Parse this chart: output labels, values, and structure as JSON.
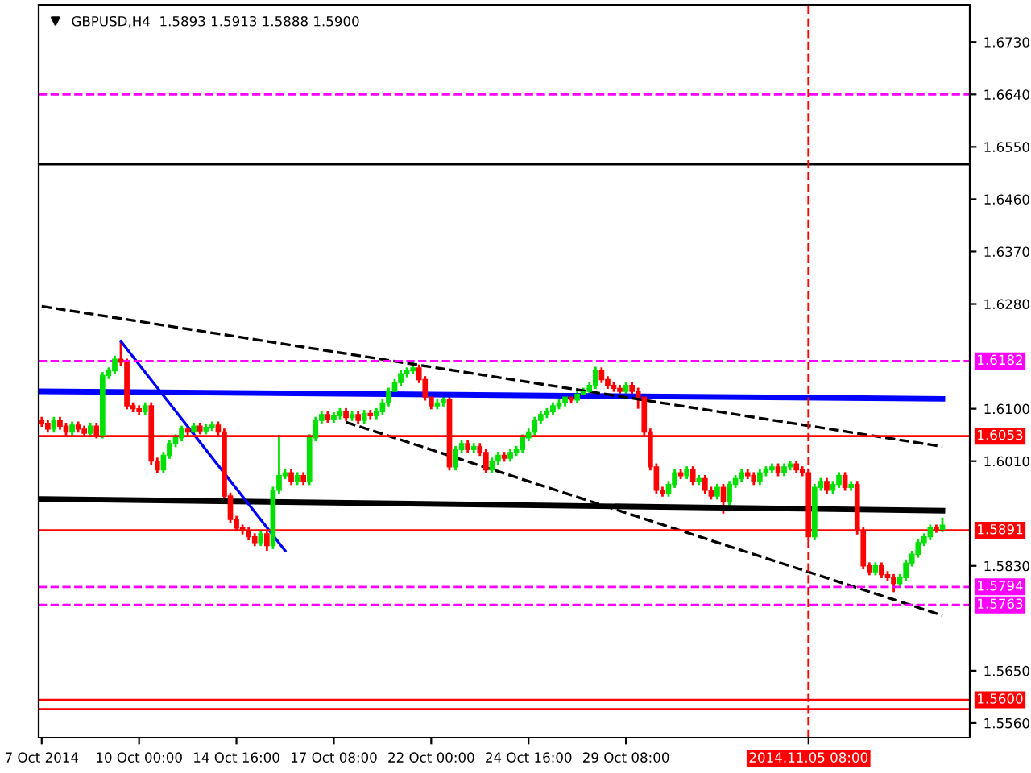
{
  "chart_data": {
    "type": "candlestick",
    "title": "GBPUSD,H4  1.5893 1.5913 1.5888 1.5900",
    "categories": [
      "7 Oct 2014",
      null,
      null,
      null,
      null,
      null,
      null,
      null,
      null,
      null,
      null,
      null,
      null,
      null,
      null,
      null,
      "10 Oct 00:00",
      null,
      null,
      null,
      null,
      null,
      null,
      null,
      null,
      null,
      null,
      null,
      null,
      null,
      null,
      null,
      "14 Oct 16:00",
      null,
      null,
      null,
      null,
      null,
      null,
      null,
      null,
      null,
      null,
      null,
      null,
      null,
      null,
      null,
      "17 Oct 08:00",
      null,
      null,
      null,
      null,
      null,
      null,
      null,
      null,
      null,
      null,
      null,
      null,
      null,
      null,
      null,
      "22 Oct 00:00",
      null,
      null,
      null,
      null,
      null,
      null,
      null,
      null,
      null,
      null,
      null,
      null,
      null,
      null,
      null,
      "24 Oct 16:00",
      null,
      null,
      null,
      null,
      null,
      null,
      null,
      null,
      null,
      null,
      null,
      null,
      null,
      null,
      null,
      "29 Oct 08:00",
      null,
      null,
      null,
      null,
      null,
      null,
      null,
      null,
      null,
      null,
      null,
      null,
      null,
      null,
      null,
      null,
      null,
      null,
      null,
      null,
      null,
      null,
      null,
      null,
      null,
      null,
      null,
      null,
      null,
      "2014.11.05 08:00",
      null,
      null,
      null,
      null,
      null,
      null,
      null,
      null,
      null,
      null,
      null,
      null,
      null,
      null,
      null,
      null,
      null,
      null,
      null,
      null,
      null,
      null
    ],
    "ohlc": [
      [
        1.608,
        1.6086,
        1.6069,
        1.6075
      ],
      [
        1.6075,
        1.6081,
        1.6059,
        1.6065
      ],
      [
        1.6065,
        1.6086,
        1.6059,
        1.608
      ],
      [
        1.608,
        1.6086,
        1.6064,
        1.607
      ],
      [
        1.607,
        1.6076,
        1.6054,
        1.606
      ],
      [
        1.606,
        1.6078,
        1.6054,
        1.6072
      ],
      [
        1.6072,
        1.6078,
        1.6059,
        1.6065
      ],
      [
        1.6065,
        1.6071,
        1.6052,
        1.6058
      ],
      [
        1.6058,
        1.6076,
        1.6052,
        1.607
      ],
      [
        1.607,
        1.6076,
        1.6049,
        1.6055
      ],
      [
        1.6055,
        1.6163,
        1.6049,
        1.6157
      ],
      [
        1.6157,
        1.6171,
        1.6151,
        1.6165
      ],
      [
        1.6165,
        1.6191,
        1.6159,
        1.6185
      ],
      [
        1.6185,
        1.6216,
        1.6174,
        1.618
      ],
      [
        1.618,
        1.6186,
        1.6099,
        1.6105
      ],
      [
        1.6105,
        1.6111,
        1.6094,
        1.61
      ],
      [
        1.61,
        1.6106,
        1.6089,
        1.6095
      ],
      [
        1.6095,
        1.6111,
        1.6089,
        1.6105
      ],
      [
        1.6105,
        1.6111,
        1.6004,
        1.601
      ],
      [
        1.601,
        1.6016,
        1.5989,
        1.5995
      ],
      [
        1.5995,
        1.6026,
        1.5989,
        1.602
      ],
      [
        1.602,
        1.6046,
        1.6014,
        1.604
      ],
      [
        1.604,
        1.6056,
        1.6034,
        1.605
      ],
      [
        1.605,
        1.6071,
        1.6044,
        1.6065
      ],
      [
        1.6065,
        1.6071,
        1.6054,
        1.606
      ],
      [
        1.606,
        1.6076,
        1.6054,
        1.607
      ],
      [
        1.607,
        1.6076,
        1.6056,
        1.6062
      ],
      [
        1.6062,
        1.6074,
        1.6056,
        1.6068
      ],
      [
        1.6068,
        1.6078,
        1.6062,
        1.6072
      ],
      [
        1.6072,
        1.6078,
        1.6054,
        1.606
      ],
      [
        1.606,
        1.6066,
        1.5944,
        1.595
      ],
      [
        1.595,
        1.5956,
        1.5904,
        1.591
      ],
      [
        1.591,
        1.5916,
        1.5889,
        1.5895
      ],
      [
        1.5895,
        1.5901,
        1.5884,
        1.589
      ],
      [
        1.589,
        1.5896,
        1.5874,
        1.588
      ],
      [
        1.588,
        1.5886,
        1.5864,
        1.587
      ],
      [
        1.587,
        1.5891,
        1.5864,
        1.5885
      ],
      [
        1.5885,
        1.5891,
        1.5856,
        1.5865
      ],
      [
        1.5865,
        1.5966,
        1.5859,
        1.596
      ],
      [
        1.596,
        1.6055,
        1.5954,
        1.5985
      ],
      [
        1.5985,
        1.5996,
        1.5979,
        1.599
      ],
      [
        1.599,
        1.5996,
        1.5969,
        1.5975
      ],
      [
        1.5975,
        1.5991,
        1.5969,
        1.5985
      ],
      [
        1.5985,
        1.5991,
        1.5969,
        1.5975
      ],
      [
        1.5975,
        1.6056,
        1.5969,
        1.605
      ],
      [
        1.605,
        1.6086,
        1.6044,
        1.608
      ],
      [
        1.608,
        1.6096,
        1.6074,
        1.609
      ],
      [
        1.609,
        1.6096,
        1.6076,
        1.6082
      ],
      [
        1.6082,
        1.6094,
        1.6076,
        1.6088
      ],
      [
        1.6088,
        1.6101,
        1.6082,
        1.6095
      ],
      [
        1.6095,
        1.6101,
        1.6079,
        1.6085
      ],
      [
        1.6085,
        1.6096,
        1.6079,
        1.609
      ],
      [
        1.609,
        1.6096,
        1.6074,
        1.608
      ],
      [
        1.608,
        1.6098,
        1.6074,
        1.6092
      ],
      [
        1.6092,
        1.6098,
        1.6082,
        1.6088
      ],
      [
        1.6088,
        1.6101,
        1.6082,
        1.6095
      ],
      [
        1.6095,
        1.6116,
        1.6089,
        1.611
      ],
      [
        1.611,
        1.6136,
        1.6104,
        1.613
      ],
      [
        1.613,
        1.6151,
        1.6124,
        1.6145
      ],
      [
        1.6145,
        1.6166,
        1.6139,
        1.616
      ],
      [
        1.616,
        1.6171,
        1.6154,
        1.6165
      ],
      [
        1.6165,
        1.618,
        1.6159,
        1.617
      ],
      [
        1.617,
        1.6176,
        1.6144,
        1.615
      ],
      [
        1.615,
        1.6156,
        1.6114,
        1.612
      ],
      [
        1.612,
        1.6126,
        1.6099,
        1.6105
      ],
      [
        1.6105,
        1.6116,
        1.6099,
        1.611
      ],
      [
        1.611,
        1.6121,
        1.6104,
        1.6115
      ],
      [
        1.6115,
        1.6121,
        1.5994,
        1.6
      ],
      [
        1.6,
        1.6036,
        1.5994,
        1.603
      ],
      [
        1.603,
        1.6046,
        1.6024,
        1.604
      ],
      [
        1.604,
        1.6046,
        1.6024,
        1.603
      ],
      [
        1.603,
        1.6041,
        1.6024,
        1.6035
      ],
      [
        1.6035,
        1.6041,
        1.6019,
        1.6025
      ],
      [
        1.6025,
        1.6031,
        1.5989,
        1.5995
      ],
      [
        1.5995,
        1.6016,
        1.5989,
        1.601
      ],
      [
        1.601,
        1.6026,
        1.6004,
        1.602
      ],
      [
        1.602,
        1.6026,
        1.6009,
        1.6015
      ],
      [
        1.6015,
        1.6031,
        1.6009,
        1.6025
      ],
      [
        1.6025,
        1.6036,
        1.6019,
        1.603
      ],
      [
        1.603,
        1.6056,
        1.6024,
        1.605
      ],
      [
        1.605,
        1.6066,
        1.6044,
        1.606
      ],
      [
        1.606,
        1.6086,
        1.6054,
        1.608
      ],
      [
        1.608,
        1.6096,
        1.6074,
        1.609
      ],
      [
        1.609,
        1.6101,
        1.6084,
        1.6095
      ],
      [
        1.6095,
        1.6111,
        1.6089,
        1.6105
      ],
      [
        1.6105,
        1.6116,
        1.6099,
        1.611
      ],
      [
        1.611,
        1.6126,
        1.6104,
        1.612
      ],
      [
        1.612,
        1.6126,
        1.6109,
        1.6115
      ],
      [
        1.6115,
        1.6131,
        1.6109,
        1.6125
      ],
      [
        1.6125,
        1.6136,
        1.6119,
        1.613
      ],
      [
        1.613,
        1.6146,
        1.6124,
        1.614
      ],
      [
        1.614,
        1.6172,
        1.6134,
        1.6165
      ],
      [
        1.6165,
        1.6171,
        1.6144,
        1.615
      ],
      [
        1.615,
        1.6156,
        1.6134,
        1.614
      ],
      [
        1.614,
        1.6146,
        1.6129,
        1.6135
      ],
      [
        1.6135,
        1.6141,
        1.6124,
        1.613
      ],
      [
        1.613,
        1.6146,
        1.6124,
        1.614
      ],
      [
        1.614,
        1.6146,
        1.6124,
        1.613
      ],
      [
        1.613,
        1.6136,
        1.61,
        1.612
      ],
      [
        1.612,
        1.6126,
        1.6054,
        1.606
      ],
      [
        1.606,
        1.6066,
        1.5994,
        1.6
      ],
      [
        1.6,
        1.6006,
        1.5954,
        1.596
      ],
      [
        1.596,
        1.5966,
        1.5949,
        1.5955
      ],
      [
        1.5955,
        1.5976,
        1.5949,
        1.597
      ],
      [
        1.597,
        1.5996,
        1.5964,
        1.599
      ],
      [
        1.599,
        1.5996,
        1.5979,
        1.5985
      ],
      [
        1.5985,
        1.6001,
        1.5979,
        1.5995
      ],
      [
        1.5995,
        1.6001,
        1.5969,
        1.5975
      ],
      [
        1.5975,
        1.5986,
        1.5969,
        1.598
      ],
      [
        1.598,
        1.5986,
        1.5954,
        1.596
      ],
      [
        1.596,
        1.5966,
        1.5944,
        1.595
      ],
      [
        1.595,
        1.5971,
        1.5944,
        1.5965
      ],
      [
        1.5965,
        1.5971,
        1.592,
        1.594
      ],
      [
        1.594,
        1.5976,
        1.5934,
        1.597
      ],
      [
        1.597,
        1.5986,
        1.5964,
        1.598
      ],
      [
        1.598,
        1.5996,
        1.5974,
        1.599
      ],
      [
        1.599,
        1.5996,
        1.5979,
        1.5985
      ],
      [
        1.5985,
        1.5991,
        1.5969,
        1.5975
      ],
      [
        1.5975,
        1.5996,
        1.5969,
        1.599
      ],
      [
        1.599,
        1.6001,
        1.5984,
        1.5995
      ],
      [
        1.5995,
        1.6006,
        1.5989,
        1.6
      ],
      [
        1.6,
        1.6006,
        1.5984,
        1.599
      ],
      [
        1.599,
        1.6006,
        1.5984,
        1.6
      ],
      [
        1.6,
        1.6011,
        1.5994,
        1.6005
      ],
      [
        1.6005,
        1.6011,
        1.5989,
        1.5995
      ],
      [
        1.5995,
        1.6001,
        1.5984,
        1.599
      ],
      [
        1.599,
        1.5996,
        1.5874,
        1.588
      ],
      [
        1.588,
        1.5971,
        1.5874,
        1.5965
      ],
      [
        1.5965,
        1.5981,
        1.5959,
        1.5975
      ],
      [
        1.5975,
        1.5981,
        1.5954,
        1.596
      ],
      [
        1.596,
        1.5976,
        1.5954,
        1.597
      ],
      [
        1.597,
        1.5991,
        1.5964,
        1.5985
      ],
      [
        1.5985,
        1.5991,
        1.5959,
        1.5965
      ],
      [
        1.5965,
        1.5976,
        1.5959,
        1.597
      ],
      [
        1.597,
        1.5976,
        1.5884,
        1.589
      ],
      [
        1.589,
        1.5896,
        1.5824,
        1.583
      ],
      [
        1.583,
        1.5836,
        1.5814,
        1.582
      ],
      [
        1.582,
        1.5836,
        1.5814,
        1.583
      ],
      [
        1.583,
        1.5836,
        1.5809,
        1.5815
      ],
      [
        1.5815,
        1.5821,
        1.5804,
        1.581
      ],
      [
        1.581,
        1.5816,
        1.5785,
        1.58
      ],
      [
        1.58,
        1.5816,
        1.5794,
        1.581
      ],
      [
        1.581,
        1.5841,
        1.5804,
        1.5835
      ],
      [
        1.5835,
        1.5856,
        1.5829,
        1.585
      ],
      [
        1.585,
        1.5876,
        1.5844,
        1.587
      ],
      [
        1.587,
        1.5886,
        1.5864,
        1.588
      ],
      [
        1.588,
        1.5901,
        1.5874,
        1.5895
      ],
      [
        1.5895,
        1.5901,
        1.5887,
        1.5893
      ],
      [
        1.5893,
        1.5913,
        1.5888,
        1.59
      ]
    ],
    "series": [
      {
        "type": "line",
        "color": "#0000ff",
        "values": [
          1.613,
          null,
          null,
          null,
          null,
          null,
          null,
          null,
          null,
          null,
          null,
          null,
          null,
          null,
          null,
          null,
          null,
          null,
          null,
          null,
          null,
          null,
          null,
          null,
          null,
          null,
          null,
          null,
          null,
          null,
          null,
          null,
          null,
          null,
          null,
          null,
          null,
          null,
          null,
          null,
          null,
          null,
          null,
          null,
          null,
          null,
          null,
          null,
          null,
          null,
          null,
          null,
          null,
          null,
          null,
          null,
          null,
          null,
          null,
          null,
          null,
          null,
          null,
          null,
          null,
          null,
          null,
          null,
          null,
          null,
          null,
          null,
          null,
          null,
          null,
          null,
          null,
          null,
          null,
          null,
          null,
          null,
          null,
          null,
          null,
          null,
          null,
          null,
          null,
          null,
          null,
          null,
          null,
          null,
          null,
          null,
          null,
          null,
          null,
          null,
          null,
          null,
          null,
          null,
          null,
          null,
          null,
          null,
          null,
          null,
          null,
          null,
          null,
          null,
          null,
          null,
          null,
          null,
          null,
          null,
          null,
          null,
          null,
          null,
          null,
          null,
          null,
          null,
          null,
          null,
          null,
          null,
          null,
          null,
          null,
          null,
          null,
          null,
          null,
          null,
          null,
          null,
          null,
          null,
          null,
          null,
          null,
          null,
          1.6117
        ]
      },
      {
        "type": "line",
        "color": "#000000",
        "values": [
          1.5945,
          null,
          null,
          null,
          null,
          null,
          null,
          null,
          null,
          null,
          null,
          null,
          null,
          null,
          null,
          null,
          null,
          null,
          null,
          null,
          null,
          null,
          null,
          null,
          null,
          null,
          null,
          null,
          null,
          null,
          null,
          null,
          null,
          null,
          null,
          null,
          null,
          null,
          null,
          null,
          null,
          null,
          null,
          null,
          null,
          null,
          null,
          null,
          null,
          null,
          null,
          null,
          null,
          null,
          null,
          null,
          null,
          null,
          null,
          null,
          null,
          null,
          null,
          null,
          null,
          null,
          null,
          null,
          null,
          null,
          null,
          null,
          null,
          null,
          null,
          null,
          null,
          null,
          null,
          null,
          null,
          null,
          null,
          null,
          null,
          null,
          null,
          null,
          null,
          null,
          null,
          null,
          null,
          null,
          null,
          null,
          null,
          null,
          null,
          null,
          null,
          null,
          null,
          null,
          null,
          null,
          null,
          null,
          null,
          null,
          null,
          null,
          null,
          null,
          null,
          null,
          null,
          null,
          null,
          null,
          null,
          null,
          null,
          null,
          null,
          null,
          null,
          null,
          null,
          null,
          null,
          null,
          null,
          null,
          null,
          null,
          null,
          null,
          null,
          null,
          null,
          null,
          null,
          null,
          null,
          null,
          null,
          null,
          1.5925
        ]
      },
      {
        "type": "line",
        "color": "#0000ff",
        "values": [
          null,
          null,
          null,
          null,
          null,
          null,
          null,
          null,
          null,
          null,
          null,
          null,
          null,
          1.6216,
          null,
          null,
          null,
          null,
          null,
          null,
          null,
          null,
          null,
          null,
          null,
          null,
          null,
          null,
          null,
          null,
          null,
          null,
          null,
          null,
          null,
          null,
          null,
          null,
          null,
          null,
          1.5856,
          null,
          null,
          null,
          null,
          null,
          null,
          null,
          null,
          null,
          null,
          null,
          null,
          null,
          null,
          null,
          null,
          null,
          null,
          null,
          null,
          null,
          null,
          null,
          null,
          null,
          null,
          null,
          null,
          null,
          null,
          null,
          null,
          null,
          null,
          null,
          null,
          null,
          null,
          null,
          null,
          null,
          null,
          null,
          null,
          null,
          null,
          null,
          null,
          null,
          null,
          null,
          null,
          null,
          null,
          null,
          null,
          null,
          null,
          null,
          null,
          null,
          null,
          null,
          null,
          null,
          null,
          null,
          null,
          null,
          null,
          null,
          null,
          null,
          null,
          null,
          null,
          null,
          null,
          null,
          null,
          null,
          null,
          null,
          null,
          null,
          null,
          null,
          null,
          null,
          null,
          null,
          null,
          null,
          null,
          null,
          null,
          null,
          null,
          null,
          null,
          null,
          null,
          null,
          null,
          null,
          null,
          null,
          null
        ]
      },
      {
        "type": "line",
        "color": "#000000",
        "line_style": "dashed",
        "values": [
          1.6276,
          null,
          null,
          null,
          null,
          null,
          null,
          null,
          null,
          null,
          null,
          null,
          null,
          null,
          null,
          null,
          null,
          null,
          null,
          null,
          null,
          null,
          null,
          null,
          null,
          null,
          null,
          null,
          null,
          null,
          null,
          null,
          null,
          null,
          null,
          null,
          null,
          null,
          null,
          null,
          null,
          null,
          null,
          null,
          null,
          null,
          null,
          null,
          null,
          null,
          null,
          null,
          null,
          null,
          null,
          null,
          null,
          null,
          null,
          null,
          null,
          null,
          null,
          null,
          null,
          null,
          null,
          null,
          null,
          null,
          null,
          null,
          null,
          null,
          null,
          null,
          null,
          null,
          null,
          null,
          null,
          null,
          null,
          null,
          null,
          null,
          null,
          null,
          null,
          null,
          null,
          null,
          null,
          null,
          null,
          null,
          null,
          null,
          null,
          null,
          null,
          null,
          null,
          null,
          null,
          null,
          null,
          null,
          null,
          null,
          null,
          null,
          null,
          null,
          null,
          null,
          null,
          null,
          null,
          null,
          null,
          null,
          null,
          null,
          null,
          null,
          null,
          null,
          null,
          null,
          null,
          null,
          null,
          null,
          null,
          null,
          null,
          null,
          null,
          null,
          null,
          null,
          null,
          null,
          null,
          null,
          null,
          null,
          1.6035
        ]
      },
      {
        "type": "line",
        "color": "#000000",
        "line_style": "dashed",
        "values": [
          null,
          null,
          null,
          null,
          null,
          null,
          null,
          null,
          null,
          null,
          null,
          null,
          null,
          null,
          null,
          null,
          null,
          null,
          null,
          null,
          null,
          null,
          null,
          null,
          null,
          null,
          null,
          null,
          null,
          null,
          null,
          null,
          null,
          null,
          null,
          null,
          null,
          null,
          null,
          null,
          null,
          null,
          null,
          null,
          null,
          null,
          null,
          null,
          null,
          null,
          1.6077,
          null,
          null,
          null,
          null,
          null,
          null,
          null,
          null,
          null,
          null,
          null,
          null,
          null,
          null,
          null,
          null,
          null,
          null,
          null,
          null,
          null,
          null,
          null,
          null,
          null,
          null,
          null,
          null,
          null,
          null,
          null,
          null,
          null,
          null,
          null,
          null,
          null,
          null,
          null,
          null,
          null,
          null,
          null,
          null,
          null,
          null,
          null,
          null,
          null,
          null,
          null,
          null,
          null,
          null,
          null,
          null,
          null,
          null,
          null,
          null,
          null,
          null,
          null,
          null,
          null,
          null,
          null,
          null,
          null,
          null,
          null,
          null,
          null,
          null,
          null,
          null,
          null,
          null,
          null,
          null,
          null,
          null,
          null,
          null,
          null,
          null,
          null,
          null,
          null,
          null,
          null,
          null,
          null,
          null,
          null,
          null,
          null,
          1.5745
        ]
      }
    ],
    "ylim": [
      1.5535,
      1.6794
    ],
    "yticks": [
      {
        "value": 1.673,
        "label": "1.6730"
      },
      {
        "value": 1.664,
        "label": "1.6640"
      },
      {
        "value": 1.655,
        "label": "1.6550"
      },
      {
        "value": 1.646,
        "label": "1.6460"
      },
      {
        "value": 1.637,
        "label": "1.6370"
      },
      {
        "value": 1.628,
        "label": "1.6280"
      },
      {
        "value": 1.61,
        "label": "1.6100"
      },
      {
        "value": 1.601,
        "label": "1.6010"
      },
      {
        "value": 1.583,
        "label": "1.5830"
      },
      {
        "value": 1.565,
        "label": "1.5650"
      },
      {
        "value": 1.556,
        "label": "1.5560"
      }
    ],
    "ref_lines": [
      {
        "axis": "y",
        "value": 1.664,
        "color": "#ff00ff",
        "line_style": "dashed"
      },
      {
        "axis": "y",
        "value": 1.652,
        "color": "#000000",
        "line_style": "solid"
      },
      {
        "axis": "y",
        "value": 1.6182,
        "label": "1.6182",
        "color": "#ff00ff",
        "line_style": "dashed"
      },
      {
        "axis": "y",
        "value": 1.6053,
        "label": "1.6053",
        "color": "#ff0000",
        "line_style": "solid"
      },
      {
        "axis": "y",
        "value": 1.5891,
        "label": "1.5891",
        "color": "#ff0000",
        "line_style": "solid"
      },
      {
        "axis": "y",
        "value": 1.5794,
        "label": "1.5794",
        "color": "#ff00ff",
        "line_style": "dashed"
      },
      {
        "axis": "y",
        "value": 1.5763,
        "label": "1.5763",
        "color": "#ff00ff",
        "line_style": "dashed"
      },
      {
        "axis": "y",
        "value": 1.56,
        "label": "1.5600",
        "color": "#ff0000",
        "line_style": "solid"
      },
      {
        "axis": "y",
        "value": 1.5584,
        "color": "#ff0000",
        "line_style": "solid"
      },
      {
        "axis": "x",
        "value": "2014.11.05 08:00",
        "color": "#ff0000",
        "line_style": "dashed"
      }
    ],
    "grid": false,
    "legend": false
  }
}
